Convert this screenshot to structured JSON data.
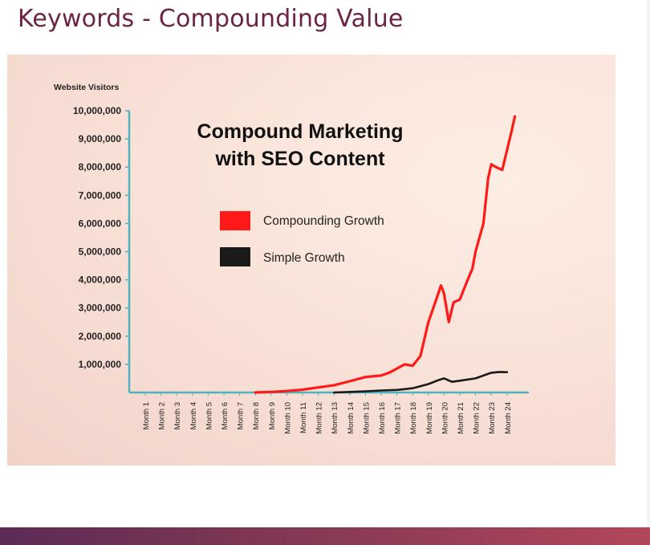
{
  "slide": {
    "title": "Keywords - Compounding Value"
  },
  "colors": {
    "title": "#6b2346",
    "axis": "#4fb3bf",
    "compounding": "#ff1a1a",
    "simple": "#1a1a1a",
    "bottom_bar": "#7b3554"
  },
  "chart_data": {
    "type": "line",
    "title": "Compound Marketing with SEO Content",
    "title_lines": [
      "Compound Marketing",
      "with SEO Content"
    ],
    "ylabel": "Website Visitors",
    "xlabel": "",
    "ylim": [
      0,
      10000000
    ],
    "yticks": [
      1000000,
      2000000,
      3000000,
      4000000,
      5000000,
      6000000,
      7000000,
      8000000,
      9000000,
      10000000
    ],
    "ytick_labels": [
      "1,000,000",
      "2,000,000",
      "3,000,000",
      "4,000,000",
      "5,000,000",
      "6,000,000",
      "7,000,000",
      "8,000,000",
      "9,000,000",
      "10,000,000"
    ],
    "categories": [
      "Month 1",
      "Month 2",
      "Month 3",
      "Month 4",
      "Month 5",
      "Month 6",
      "Month 7",
      "Month 8",
      "Month 9",
      "Month 10",
      "Month 11",
      "Month 12",
      "Month 13",
      "Month 14",
      "Month 15",
      "Month 16",
      "Month 17",
      "Month 18",
      "Month 19",
      "Month 20",
      "Month 21",
      "Month 22",
      "Month 23",
      "Month 24"
    ],
    "legend_position": "center",
    "grid": false,
    "series": [
      {
        "name": "Compounding Growth",
        "color": "#ff1a1a",
        "points": [
          [
            8,
            0
          ],
          [
            9,
            20000
          ],
          [
            10,
            50000
          ],
          [
            11,
            100000
          ],
          [
            12,
            180000
          ],
          [
            13,
            260000
          ],
          [
            14,
            400000
          ],
          [
            15,
            550000
          ],
          [
            16,
            600000
          ],
          [
            16.5,
            700000
          ],
          [
            17,
            850000
          ],
          [
            17.5,
            1000000
          ],
          [
            18,
            950000
          ],
          [
            18.5,
            1300000
          ],
          [
            19,
            2500000
          ],
          [
            19.5,
            3300000
          ],
          [
            19.8,
            3800000
          ],
          [
            20,
            3500000
          ],
          [
            20.3,
            2500000
          ],
          [
            20.6,
            3200000
          ],
          [
            21,
            3300000
          ],
          [
            21.5,
            4000000
          ],
          [
            21.8,
            4400000
          ],
          [
            22,
            5000000
          ],
          [
            22.5,
            6000000
          ],
          [
            22.8,
            7600000
          ],
          [
            23,
            8100000
          ],
          [
            23.3,
            8000000
          ],
          [
            23.7,
            7900000
          ],
          [
            24,
            8600000
          ],
          [
            24.3,
            9300000
          ],
          [
            24.5,
            9800000
          ]
        ]
      },
      {
        "name": "Simple Growth",
        "color": "#1a1a1a",
        "points": [
          [
            13,
            0
          ],
          [
            14,
            20000
          ],
          [
            15,
            40000
          ],
          [
            16,
            70000
          ],
          [
            17,
            90000
          ],
          [
            18,
            150000
          ],
          [
            19,
            300000
          ],
          [
            19.7,
            450000
          ],
          [
            20,
            500000
          ],
          [
            20.5,
            380000
          ],
          [
            21,
            420000
          ],
          [
            22,
            500000
          ],
          [
            22.5,
            600000
          ],
          [
            23,
            700000
          ],
          [
            23.5,
            730000
          ],
          [
            24,
            720000
          ]
        ]
      }
    ]
  }
}
